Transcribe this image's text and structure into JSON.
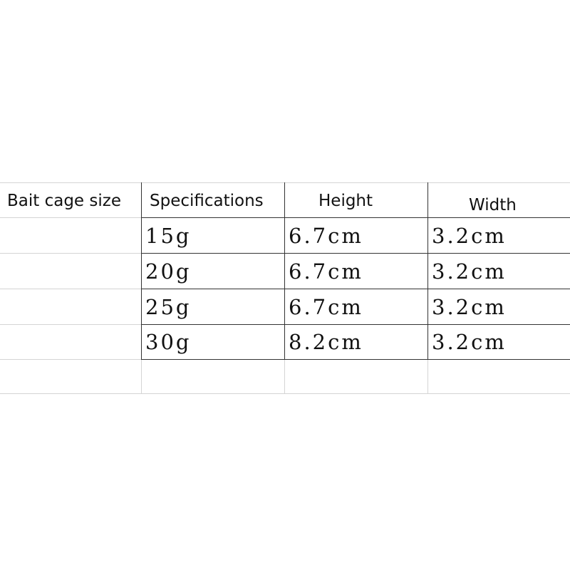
{
  "table": {
    "headers": [
      "Bait cage size",
      "Specifications",
      "Height",
      "Width"
    ],
    "rows": [
      [
        "",
        "15g",
        "6.7cm",
        "3.2cm"
      ],
      [
        "",
        "20g",
        "6.7cm",
        "3.2cm"
      ],
      [
        "",
        "25g",
        "6.7cm",
        "3.2cm"
      ],
      [
        "",
        "30g",
        "8.2cm",
        "3.2cm"
      ]
    ]
  }
}
